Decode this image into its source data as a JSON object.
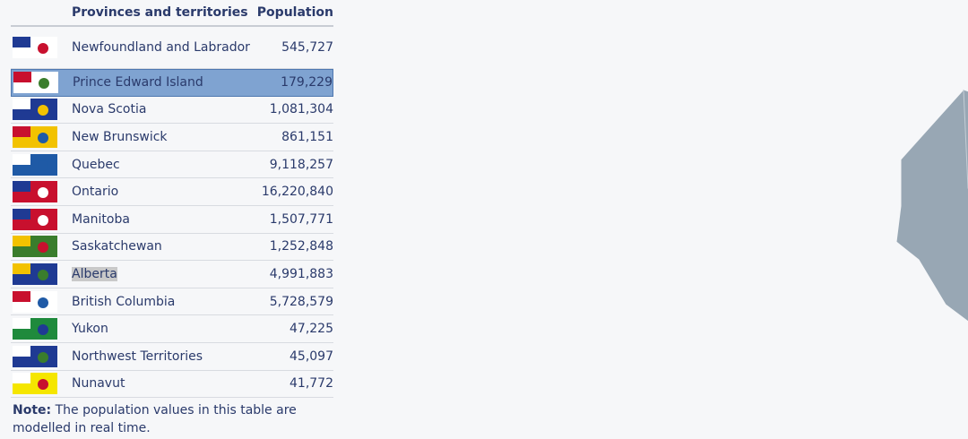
{
  "table": {
    "headers": [
      "Provinces and territories",
      "Population"
    ],
    "rows": [
      [
        "Newfoundland and Labrador",
        "545,727"
      ],
      [
        "Prince Edward Island",
        "179,229"
      ],
      [
        "Nova Scotia",
        "1,081,304"
      ],
      [
        "New Brunswick",
        "861,151"
      ],
      [
        "Quebec",
        "9,118,257"
      ],
      [
        "Ontario",
        "16,220,840"
      ],
      [
        "Manitoba",
        "1,507,771"
      ],
      [
        "Saskatchewan",
        "1,252,848"
      ],
      [
        "Alberta",
        "4,991,883"
      ],
      [
        "British Columbia",
        "5,728,579"
      ],
      [
        "Yukon",
        "47,225"
      ],
      [
        "Northwest Territories",
        "45,097"
      ],
      [
        "Nunavut",
        "41,772"
      ]
    ]
  },
  "note": {
    "label": "Note:",
    "text": "The population values in this table are modelled in real time."
  }
}
